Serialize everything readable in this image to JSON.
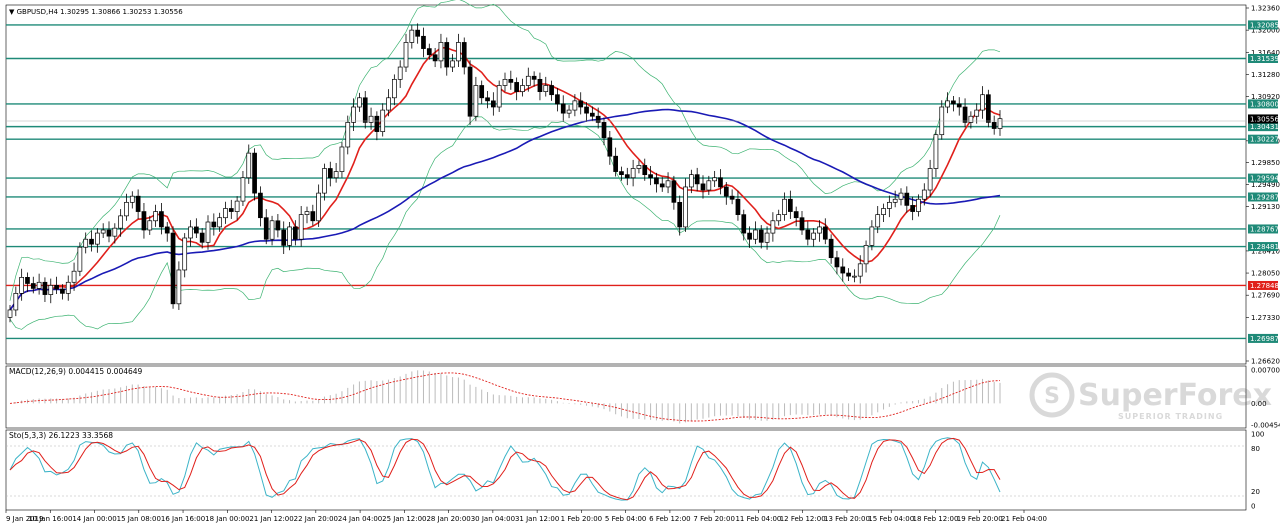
{
  "header": {
    "symbol_line": "GBPUSD,H4  1.30295 1.30866 1.30253 1.30556"
  },
  "macd_label": "MACD(12,26,9) 0.004415 0.004649",
  "stoch_label": "Sto(5,3,3) 26.1223 33.3568",
  "watermark": {
    "brand": "SuperForex",
    "tagline": "SUPERIOR TRADING"
  },
  "colors": {
    "bull_candle": "#ffffff",
    "bear_candle": "#000000",
    "level_line": "#1f8a78",
    "support_line": "#e0201b",
    "ma_fast": "#e0201b",
    "ma_slow": "#1a1ab5",
    "bollinger": "#3cb371",
    "macd_signal": "#e0201b",
    "stoch_k": "#3cb4c8",
    "stoch_d": "#e0201b"
  },
  "chart_data": [
    {
      "type": "candlestick",
      "title": "GBPUSD,H4",
      "ylim": [
        1.2662,
        1.3236
      ],
      "y_ticks": [
        "1.32360",
        "1.32000",
        "1.31640",
        "1.31280",
        "1.30920",
        "1.30200",
        "1.29850",
        "1.29490",
        "1.29130",
        "1.28410",
        "1.28050",
        "1.27690",
        "1.27330",
        "1.26620"
      ],
      "x_ticks": [
        "9 Jan 2019",
        "10 Jan 16:00",
        "14 Jan 00:00",
        "15 Jan 08:00",
        "16 Jan 16:00",
        "18 Jan 00:00",
        "21 Jan 12:00",
        "22 Jan 20:00",
        "24 Jan 04:00",
        "25 Jan 12:00",
        "28 Jan 20:00",
        "30 Jan 04:00",
        "31 Jan 12:00",
        "1 Feb 20:00",
        "5 Feb 04:00",
        "6 Feb 12:00",
        "7 Feb 20:00",
        "11 Feb 04:00",
        "12 Feb 12:00",
        "13 Feb 20:00",
        "15 Feb 04:00",
        "18 Feb 12:00",
        "19 Feb 20:00",
        "21 Feb 04:00"
      ],
      "levels": [
        "1.32085",
        "1.31539",
        "1.30800",
        "1.30431",
        "1.30227",
        "1.29594",
        "1.29287",
        "1.28767",
        "1.28481",
        "1.27848",
        "1.26987"
      ],
      "current_price": "1.30556",
      "close": [
        1.2745,
        1.2772,
        1.2798,
        1.2788,
        1.278,
        1.279,
        1.277,
        1.2785,
        1.2779,
        1.2772,
        1.279,
        1.2808,
        1.2847,
        1.286,
        1.2852,
        1.287,
        1.2875,
        1.2865,
        1.2878,
        1.2898,
        1.292,
        1.293,
        1.2905,
        1.2875,
        1.289,
        1.2905,
        1.288,
        1.287,
        1.2755,
        1.281,
        1.2862,
        1.288,
        1.287,
        1.2855,
        1.2888,
        1.288,
        1.2895,
        1.291,
        1.2905,
        1.2922,
        1.296,
        1.3,
        1.2935,
        1.2895,
        1.286,
        1.289,
        1.2875,
        1.285,
        1.288,
        1.286,
        1.29,
        1.2905,
        1.289,
        1.2935,
        1.2975,
        1.296,
        1.297,
        1.301,
        1.305,
        1.3075,
        1.309,
        1.305,
        1.306,
        1.3035,
        1.307,
        1.309,
        1.312,
        1.314,
        1.318,
        1.32,
        1.319,
        1.317,
        1.316,
        1.315,
        1.318,
        1.314,
        1.315,
        1.318,
        1.314,
        1.306,
        1.311,
        1.309,
        1.3085,
        1.3075,
        1.311,
        1.312,
        1.3115,
        1.31,
        1.311,
        1.3125,
        1.312,
        1.31,
        1.311,
        1.3095,
        1.308,
        1.3065,
        1.307,
        1.3085,
        1.3075,
        1.3065,
        1.306,
        1.305,
        1.3025,
        1.2995,
        1.297,
        1.2965,
        1.296,
        1.2975,
        1.298,
        1.2965,
        1.296,
        1.295,
        1.2945,
        1.2955,
        1.292,
        1.288,
        1.2945,
        1.2965,
        1.295,
        1.294,
        1.2955,
        1.296,
        1.2945,
        1.293,
        1.2925,
        1.29,
        1.287,
        1.286,
        1.2875,
        1.2855,
        1.287,
        1.289,
        1.29,
        1.2925,
        1.2905,
        1.2895,
        1.2875,
        1.286,
        1.287,
        1.288,
        1.286,
        1.283,
        1.2815,
        1.2805,
        1.28,
        1.28,
        1.282,
        1.285,
        1.288,
        1.29,
        1.291,
        1.292,
        1.2925,
        1.2935,
        1.2915,
        1.2905,
        1.2925,
        1.294,
        1.2975,
        1.303,
        1.3075,
        1.3085,
        1.308,
        1.3075,
        1.305,
        1.306,
        1.307,
        1.3095,
        1.305,
        1.304,
        1.3056
      ]
    },
    {
      "type": "bar",
      "title": "MACD(12,26,9) 0.004415 0.004649",
      "ylim": [
        -0.004548,
        0.007006
      ],
      "y_ticks": [
        "0.007006",
        "0.00",
        "-0.004548"
      ]
    },
    {
      "type": "line",
      "title": "Sto(5,3,3) 26.1223 33.3568",
      "ylim": [
        0,
        100
      ],
      "y_ticks": [
        "100",
        "80",
        "20",
        "0"
      ]
    }
  ]
}
